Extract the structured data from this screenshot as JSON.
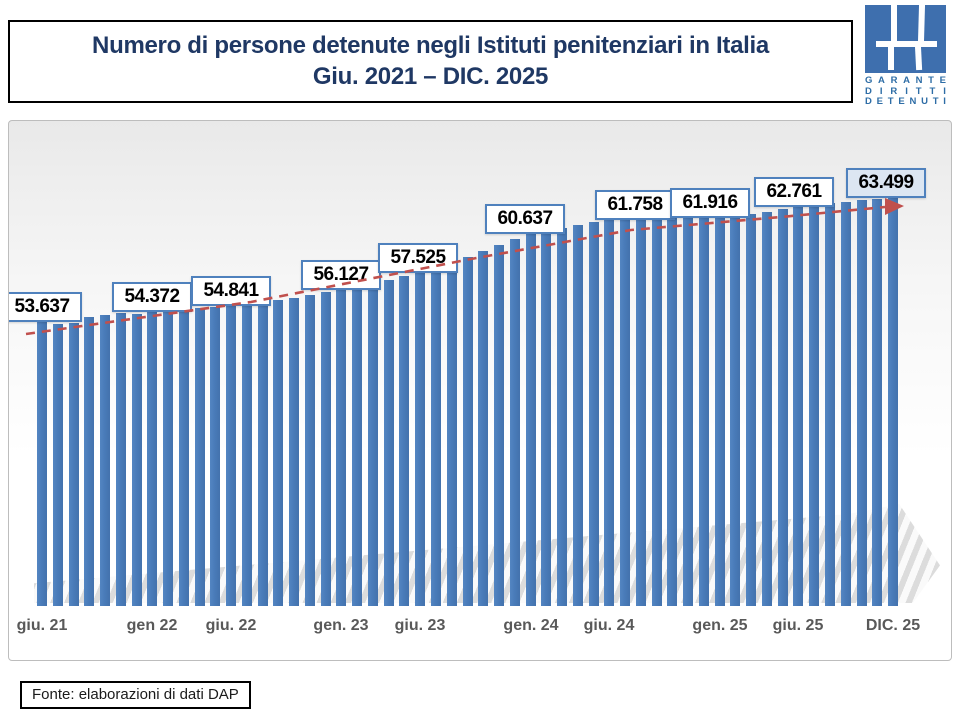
{
  "title": {
    "line1": "Numero di persone detenute negli Istituti penitenziari in Italia",
    "line2": "Giu. 2021 – DIC. 2025"
  },
  "logo": {
    "lines": [
      "GARANTE",
      "DIRITTI",
      "DETENUTI"
    ]
  },
  "source_note": "Fonte: elaborazioni di dati DAP",
  "colors": {
    "bar": "#4a7cba",
    "callout_border": "#4f81bd",
    "callout_highlight_bg": "#dce6f2",
    "trend": "#c0504d",
    "title_text": "#1f3864",
    "axis_text": "#595959",
    "logo_blue": "#3e6fae"
  },
  "chart_data": {
    "type": "bar",
    "title": "Numero di persone detenute negli Istituti penitenziari in Italia, Giu. 2021 – DIC. 2025",
    "x_unit": "month",
    "x_start": "giu. 2021",
    "x_end": "dic. 2025",
    "ylim": [
      30800,
      65000
    ],
    "grid": false,
    "legend": null,
    "values": [
      53637,
      53350,
      53450,
      53900,
      54100,
      54250,
      54150,
      54372,
      54450,
      54550,
      54650,
      54750,
      54841,
      54950,
      55100,
      55250,
      55450,
      55650,
      55900,
      56127,
      56400,
      56650,
      56900,
      57200,
      57525,
      57900,
      58300,
      58700,
      59200,
      59700,
      60200,
      60637,
      60850,
      61050,
      61250,
      61500,
      61758,
      61800,
      61840,
      61860,
      61870,
      61880,
      61900,
      61916,
      62050,
      62200,
      62350,
      62550,
      62761,
      62900,
      63030,
      63150,
      63280,
      63400,
      63499
    ],
    "values_note": "only callout values are printed on the chart; intermediate monthly bars estimated from pixel heights",
    "axis_ticks": [
      {
        "label": "giu. 21",
        "month_index": 0
      },
      {
        "label": "gen 22",
        "month_index": 7
      },
      {
        "label": "giu. 22",
        "month_index": 12
      },
      {
        "label": "gen. 23",
        "month_index": 19
      },
      {
        "label": "giu. 23",
        "month_index": 24
      },
      {
        "label": "gen. 24",
        "month_index": 31
      },
      {
        "label": "giu. 24",
        "month_index": 36
      },
      {
        "label": "gen. 25",
        "month_index": 43
      },
      {
        "label": "giu. 25",
        "month_index": 48
      },
      {
        "label": "DIC. 25",
        "month_index": 54
      }
    ],
    "callouts": [
      {
        "label": "53.637",
        "value": 53637,
        "month_index": 0,
        "highlight": false
      },
      {
        "label": "54.372",
        "value": 54372,
        "month_index": 7,
        "highlight": false
      },
      {
        "label": "54.841",
        "value": 54841,
        "month_index": 12,
        "highlight": false
      },
      {
        "label": "56.127",
        "value": 56127,
        "month_index": 19,
        "highlight": false
      },
      {
        "label": "57.525",
        "value": 57525,
        "month_index": 24,
        "highlight": false
      },
      {
        "label": "60.637",
        "value": 60637,
        "month_index": 31,
        "highlight": false
      },
      {
        "label": "61.758",
        "value": 61758,
        "month_index": 36,
        "highlight": false
      },
      {
        "label": "61.916",
        "value": 61916,
        "month_index": 43,
        "highlight": false
      },
      {
        "label": "62.761",
        "value": 62761,
        "month_index": 48,
        "highlight": false
      },
      {
        "label": "63.499",
        "value": 63499,
        "month_index": 54,
        "highlight": true
      }
    ],
    "trendline": {
      "style": "dashed",
      "color": "#c0504d",
      "arrow": true
    }
  }
}
